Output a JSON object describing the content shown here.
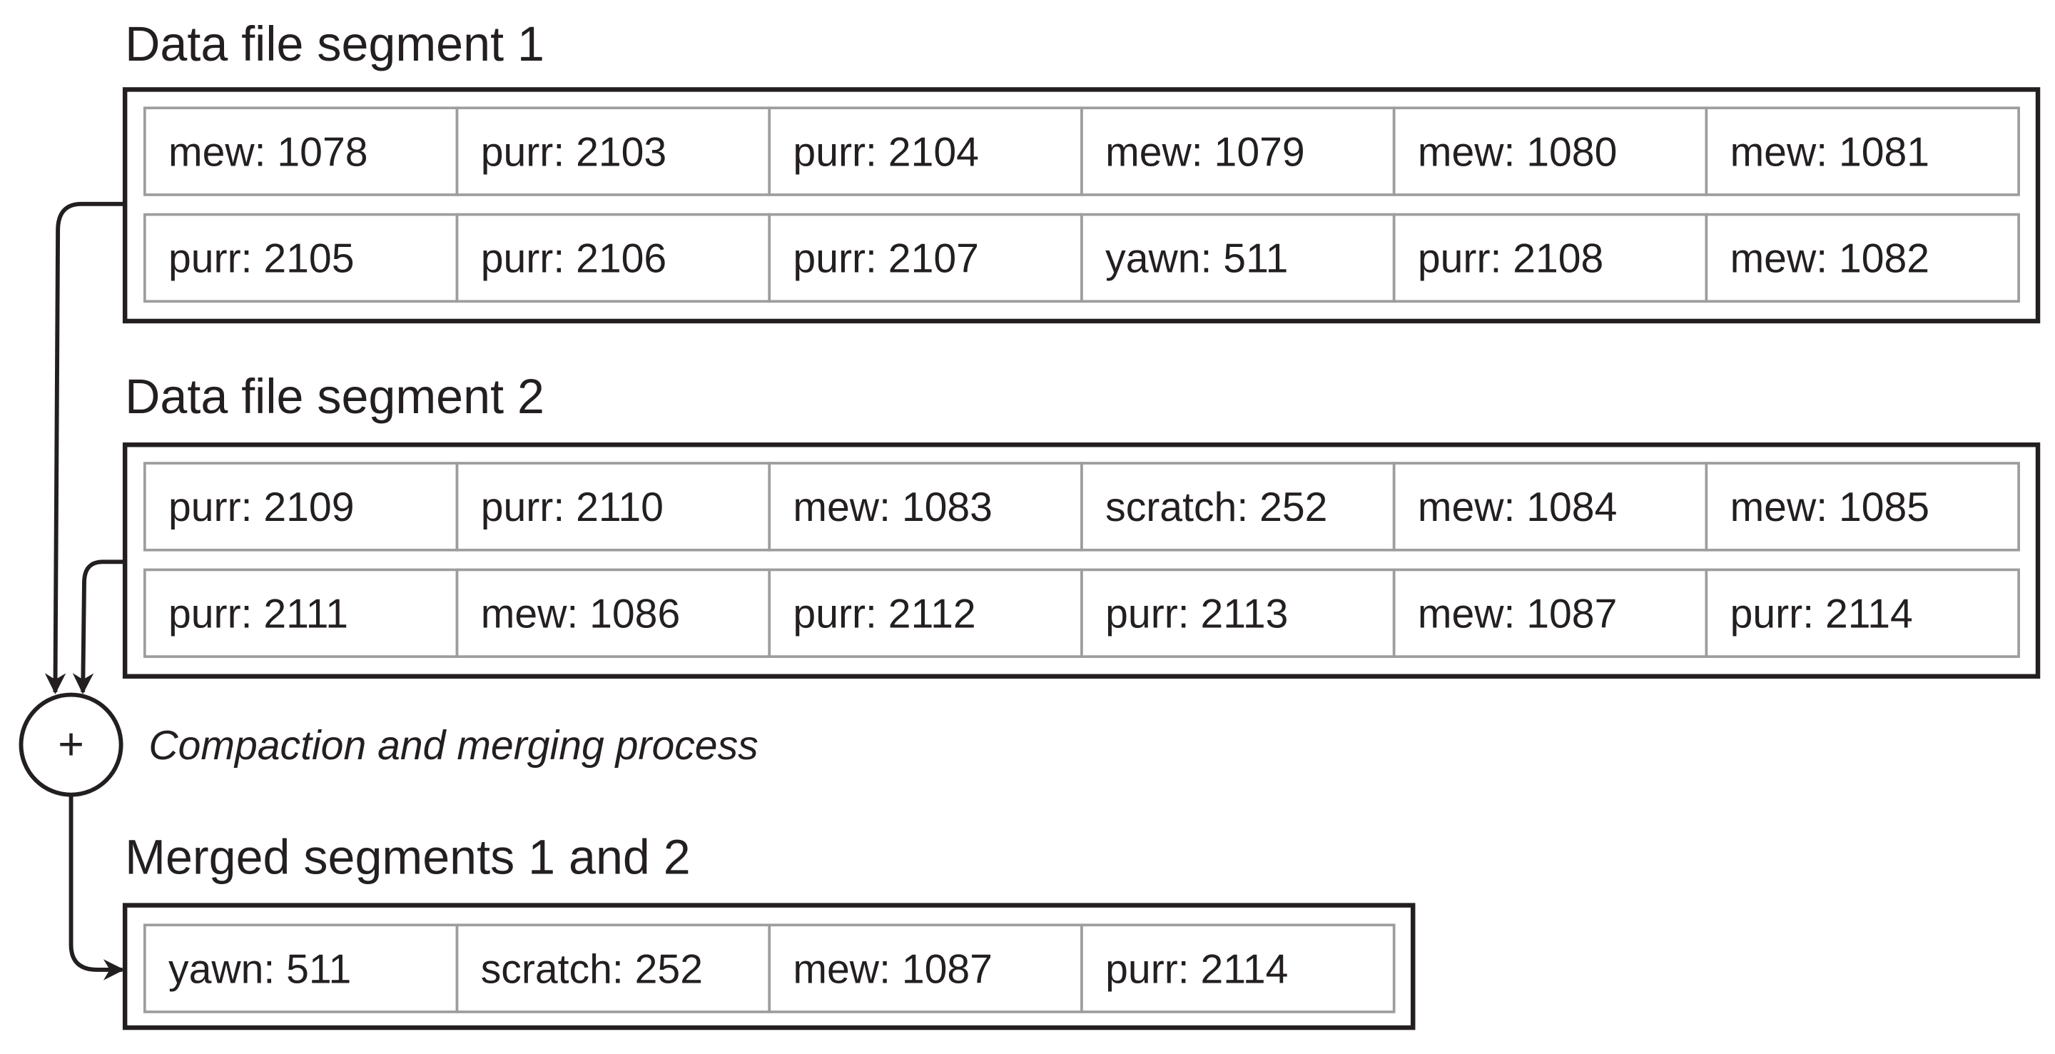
{
  "segments": [
    {
      "title": "Data file segment 1",
      "rows": [
        [
          "mew: 1078",
          "purr: 2103",
          "purr: 2104",
          "mew: 1079",
          "mew: 1080",
          "mew: 1081"
        ],
        [
          "purr: 2105",
          "purr: 2106",
          "purr: 2107",
          "yawn: 511",
          "purr: 2108",
          "mew: 1082"
        ]
      ]
    },
    {
      "title": "Data file segment 2",
      "rows": [
        [
          "purr: 2109",
          "purr: 2110",
          "mew: 1083",
          "scratch: 252",
          "mew: 1084",
          "mew: 1085"
        ],
        [
          "purr: 2111",
          "mew: 1086",
          "purr: 2112",
          "purr: 2113",
          "mew: 1087",
          "purr: 2114"
        ]
      ]
    },
    {
      "title": "Merged segments 1 and 2",
      "rows": [
        [
          "yawn: 511",
          "scratch: 252",
          "mew: 1087",
          "purr: 2114"
        ]
      ]
    }
  ],
  "process": {
    "symbol": "+",
    "caption": "Compaction and merging process"
  }
}
